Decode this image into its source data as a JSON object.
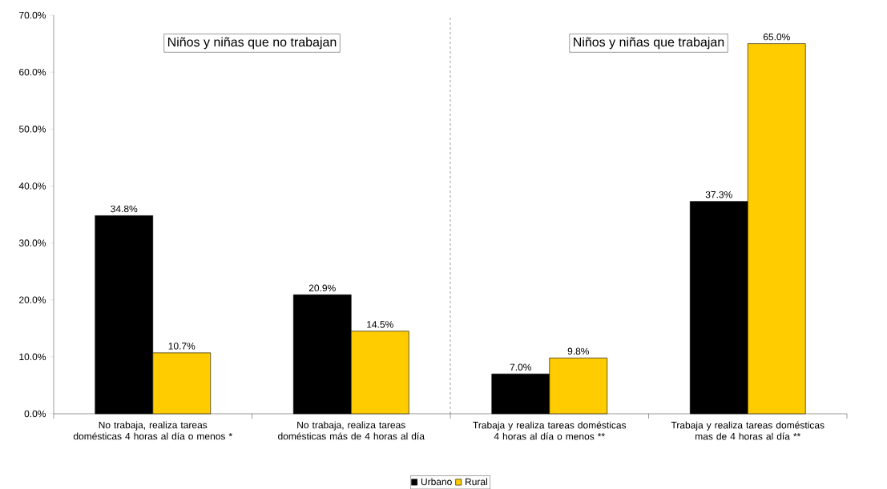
{
  "chart_data": {
    "type": "bar",
    "categories": [
      "No trabaja, realiza tareas domésticas 4 horas al día o menos *",
      "No trabaja, realiza tareas domésticas más de 4 horas al día",
      "Trabaja y realiza tareas domésticas 4 horas al día o menos **",
      "Trabaja y realiza tareas domésticas mas de 4 horas al día **"
    ],
    "series": [
      {
        "name": "Urbano",
        "color": "#000000",
        "values": [
          34.8,
          20.9,
          7.0,
          37.3
        ],
        "value_labels": [
          "34.8%",
          "20.9%",
          "7.0%",
          "37.3%"
        ]
      },
      {
        "name": "Rural",
        "color": "#ffcc00",
        "values": [
          10.7,
          14.5,
          9.8,
          65.0
        ],
        "value_labels": [
          "10.7%",
          "14.5%",
          "9.8%",
          "65.0%"
        ]
      }
    ],
    "ylim": [
      0,
      70
    ],
    "yticks": [
      {
        "value": 0,
        "label": "0.0%"
      },
      {
        "value": 10,
        "label": "10.0%"
      },
      {
        "value": 20,
        "label": "20.0%"
      },
      {
        "value": 30,
        "label": "30.0%"
      },
      {
        "value": 40,
        "label": "40.0%"
      },
      {
        "value": 50,
        "label": "50.0%"
      },
      {
        "value": 60,
        "label": "60.0%"
      },
      {
        "value": 70,
        "label": "70.0%"
      }
    ],
    "annotations": [
      "Niños y niñas que no trabajan",
      "Niños y niñas que trabajan"
    ],
    "legend": "bottom",
    "grid": false
  }
}
